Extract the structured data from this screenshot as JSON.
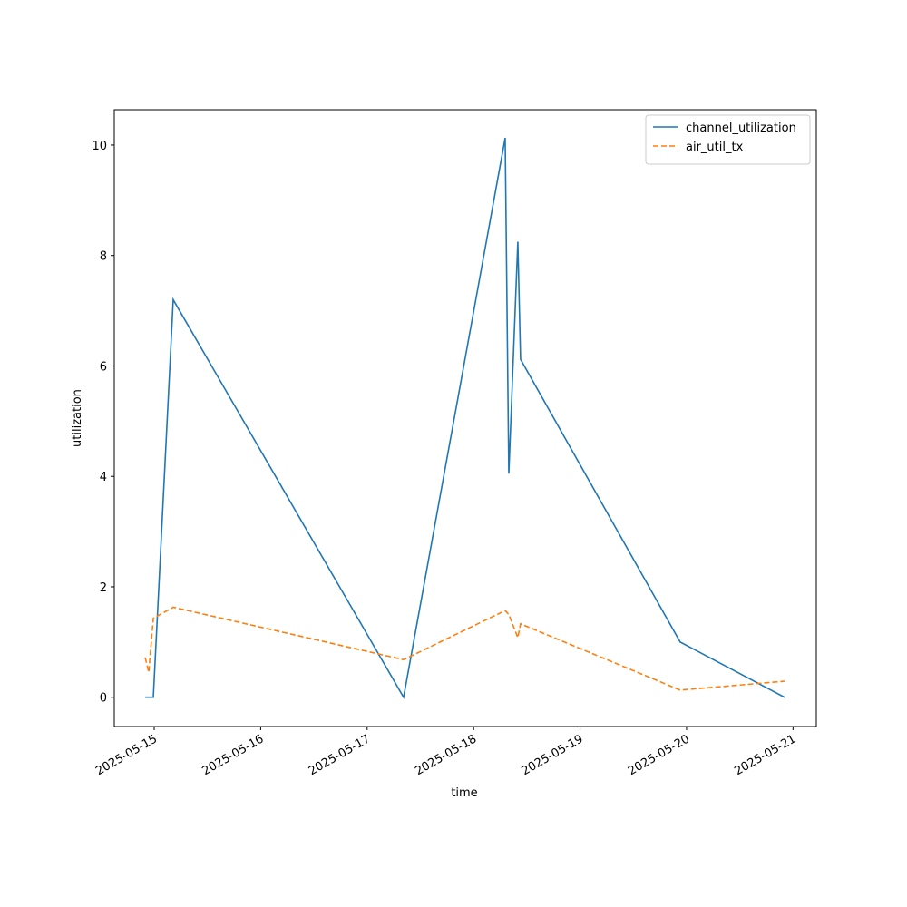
{
  "chart_data": {
    "type": "line",
    "x_label": "time",
    "y_label": "utilization",
    "x": [
      "2025-05-14T21:58",
      "2025-05-14T22:46",
      "2025-05-14T23:48",
      "2025-05-15T04:17",
      "2025-05-17T08:13",
      "2025-05-18T07:07",
      "2025-05-18T07:56",
      "2025-05-18T09:58",
      "2025-05-18T10:35",
      "2025-05-19T22:34",
      "2025-05-20T22:05"
    ],
    "series": [
      {
        "name": "channel_utilization",
        "color": "#1f77b4",
        "linestyle": "solid",
        "values": [
          0,
          0,
          0,
          7.2,
          0,
          10.13,
          4.05,
          8.25,
          6.12,
          1.0,
          0
        ]
      },
      {
        "name": "air_util_tx",
        "color": "#ff7f0e",
        "linestyle": "dashed",
        "values": [
          0.72,
          0.45,
          1.43,
          1.63,
          0.68,
          1.57,
          1.5,
          1.08,
          1.33,
          0.13,
          0.29
        ]
      }
    ],
    "xlim": [
      "2025-05-14T15:00",
      "2025-05-21T05:15"
    ],
    "xticks": [
      "2025-05-15",
      "2025-05-16",
      "2025-05-17",
      "2025-05-18",
      "2025-05-19",
      "2025-05-20",
      "2025-05-21"
    ],
    "ylim": [
      -0.53,
      10.64
    ],
    "yticks": [
      0,
      2,
      4,
      6,
      8,
      10
    ],
    "grid": false,
    "legend": "upper right"
  }
}
